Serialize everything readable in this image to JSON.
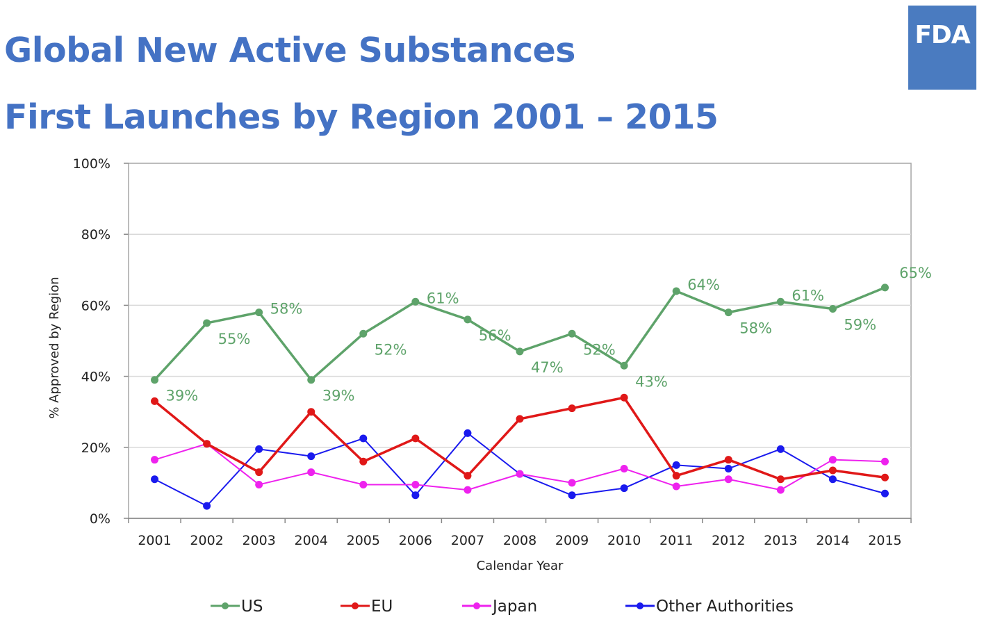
{
  "title_line1": "Global New Active Substances",
  "title_line2": "First Launches by Region 2001 – 2015",
  "logo_text": "FDA",
  "chart_data": {
    "type": "line",
    "xlabel": "Calendar Year",
    "ylabel": "% Approved by Region",
    "ylim": [
      0,
      100
    ],
    "yticks": [
      "0%",
      "20%",
      "40%",
      "60%",
      "80%",
      "100%"
    ],
    "categories": [
      "2001",
      "2002",
      "2003",
      "2004",
      "2005",
      "2006",
      "2007",
      "2008",
      "2009",
      "2010",
      "2011",
      "2012",
      "2013",
      "2014",
      "2015"
    ],
    "grid": true,
    "legend_position": "bottom",
    "series": [
      {
        "name": "US",
        "color": "#5ea36a",
        "values": [
          39,
          55,
          58,
          39,
          52,
          61,
          56,
          47,
          52,
          43,
          64,
          58,
          61,
          59,
          65
        ],
        "data_labels": [
          "39%",
          "55%",
          "58%",
          "39%",
          "52%",
          "61%",
          "56%",
          "47%",
          "52%",
          "43%",
          "64%",
          "58%",
          "61%",
          "59%",
          "65%"
        ]
      },
      {
        "name": "EU",
        "color": "#e01818",
        "values": [
          33,
          21,
          13,
          30,
          16,
          22.5,
          12,
          28,
          31,
          34,
          12,
          16.5,
          11,
          13.5,
          11.5
        ]
      },
      {
        "name": "Japan",
        "color": "#ee22ee",
        "values": [
          16.5,
          21,
          9.5,
          13,
          9.5,
          9.5,
          8,
          12.5,
          10,
          14,
          9,
          11,
          8,
          16.5,
          16
        ]
      },
      {
        "name": "Other Authorities",
        "color": "#1a1aee",
        "values": [
          11,
          3.5,
          19.5,
          17.5,
          22.5,
          6.5,
          24,
          12.5,
          6.5,
          8.5,
          15,
          14,
          19.5,
          11,
          7
        ]
      }
    ]
  }
}
